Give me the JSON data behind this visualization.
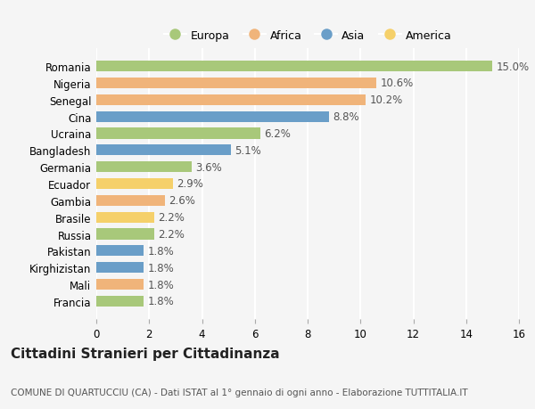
{
  "categories": [
    "Romania",
    "Nigeria",
    "Senegal",
    "Cina",
    "Ucraina",
    "Bangladesh",
    "Germania",
    "Ecuador",
    "Gambia",
    "Brasile",
    "Russia",
    "Pakistan",
    "Kirghizistan",
    "Mali",
    "Francia"
  ],
  "values": [
    15.0,
    10.6,
    10.2,
    8.8,
    6.2,
    5.1,
    3.6,
    2.9,
    2.6,
    2.2,
    2.2,
    1.8,
    1.8,
    1.8,
    1.8
  ],
  "continents": [
    "Europa",
    "Africa",
    "Africa",
    "Asia",
    "Europa",
    "Asia",
    "Europa",
    "America",
    "Africa",
    "America",
    "Europa",
    "Asia",
    "Asia",
    "Africa",
    "Europa"
  ],
  "continent_colors": {
    "Europa": "#a8c87a",
    "Africa": "#f0b47a",
    "Asia": "#6a9ec8",
    "America": "#f5d06a"
  },
  "legend_order": [
    "Europa",
    "Africa",
    "Asia",
    "America"
  ],
  "title": "Cittadini Stranieri per Cittadinanza",
  "subtitle": "COMUNE DI QUARTUCCIU (CA) - Dati ISTAT al 1° gennaio di ogni anno - Elaborazione TUTTITALIA.IT",
  "xlim": [
    0,
    16
  ],
  "xticks": [
    0,
    2,
    4,
    6,
    8,
    10,
    12,
    14,
    16
  ],
  "background_color": "#f5f5f5",
  "bar_height": 0.65,
  "grid_color": "#ffffff",
  "label_fontsize": 8.5,
  "tick_fontsize": 8.5,
  "title_fontsize": 11,
  "subtitle_fontsize": 7.5
}
